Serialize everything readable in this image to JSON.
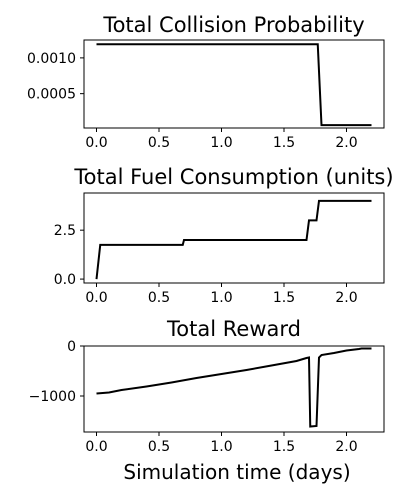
{
  "figure": {
    "xlabel": "Simulation time (days)"
  },
  "chart_data": [
    {
      "type": "line",
      "title": "Total Collision Probability",
      "xlabel": "",
      "ylabel": "",
      "xlim": [
        -0.1,
        2.3
      ],
      "ylim": [
        2e-05,
        0.00125
      ],
      "xticks": [
        0.0,
        0.5,
        1.0,
        1.5,
        2.0
      ],
      "xticklabels": [
        "0.0",
        "0.5",
        "1.0",
        "1.5",
        "2.0"
      ],
      "yticks": [
        0.0005,
        0.001
      ],
      "yticklabels": [
        "0.0005",
        "0.0010"
      ],
      "grid": false,
      "line_color": "#000000",
      "series": [
        {
          "x": [
            0.0,
            1.77,
            1.8,
            2.2
          ],
          "y": [
            0.00119,
            0.00119,
            6e-05,
            6e-05
          ]
        }
      ]
    },
    {
      "type": "line",
      "title": "Total Fuel Consumption (units)",
      "xlabel": "",
      "ylabel": "",
      "xlim": [
        -0.1,
        2.3
      ],
      "ylim": [
        -0.2,
        4.4
      ],
      "xticks": [
        0.0,
        0.5,
        1.0,
        1.5,
        2.0
      ],
      "xticklabels": [
        "0.0",
        "0.5",
        "1.0",
        "1.5",
        "2.0"
      ],
      "yticks": [
        0.0,
        2.5
      ],
      "yticklabels": [
        "0.0",
        "2.5"
      ],
      "grid": false,
      "line_color": "#000000",
      "series": [
        {
          "x": [
            0.0,
            0.03,
            0.69,
            0.7,
            1.68,
            1.7,
            1.76,
            1.78,
            2.2
          ],
          "y": [
            0.0,
            1.75,
            1.75,
            2.0,
            2.0,
            3.0,
            3.0,
            4.0,
            4.0
          ]
        }
      ]
    },
    {
      "type": "line",
      "title": "Total Reward",
      "xlabel": "Simulation time (days)",
      "ylabel": "",
      "xlim": [
        -0.1,
        2.3
      ],
      "ylim": [
        -1720,
        0
      ],
      "xticks": [
        0.0,
        0.5,
        1.0,
        1.5,
        2.0
      ],
      "xticklabels": [
        "0.0",
        "0.5",
        "1.0",
        "1.5",
        "2.0"
      ],
      "yticks": [
        -1000,
        0
      ],
      "yticklabels": [
        "−1000",
        "0"
      ],
      "grid": false,
      "line_color": "#000000",
      "series": [
        {
          "x": [
            0.0,
            0.1,
            0.2,
            0.4,
            0.6,
            0.8,
            1.0,
            1.2,
            1.4,
            1.6,
            1.68,
            1.7,
            1.71,
            1.76,
            1.78,
            1.8,
            1.9,
            2.0,
            2.1,
            2.12,
            2.2
          ],
          "y": [
            -950,
            -930,
            -880,
            -810,
            -730,
            -640,
            -560,
            -480,
            -390,
            -300,
            -240,
            -230,
            -1610,
            -1600,
            -230,
            -180,
            -140,
            -90,
            -60,
            -50,
            -50
          ]
        }
      ]
    }
  ]
}
